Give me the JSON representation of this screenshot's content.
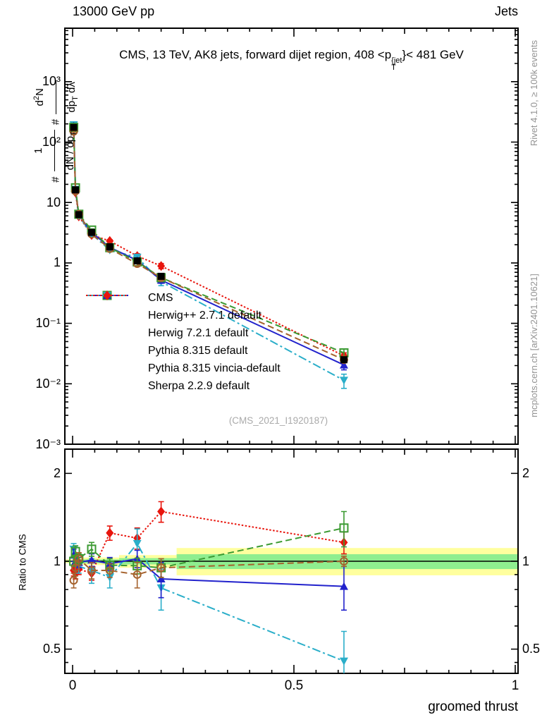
{
  "header": {
    "left": "13000 GeV pp",
    "right": "Jets"
  },
  "title": {
    "prefix": "CMS, 13 TeV, AK8 jets, forward dijet region, 408 <p",
    "sup": "{jet",
    "sub": "T",
    "suffix": "}< 481 GeV"
  },
  "side_texts": {
    "rivet": "Rivet 4.1.0, ≥ 100k events",
    "mcplots": "mcplots.cern.ch [arXiv:2401.10621]"
  },
  "watermark": "(CMS_2021_I1920187)",
  "ylabel_formula": {
    "hash1": "#",
    "f1num": "1",
    "f1den_a": "dN / dp",
    "f1den_sub": "T",
    "hash2": "#",
    "f2num_a": "d",
    "f2num_sup": "2",
    "f2num_b": "N",
    "f2den_a": "dp",
    "f2den_sub": "T",
    "f2den_b": " dλ"
  },
  "ratio_ylabel": "Ratio to CMS",
  "axes": {
    "main_y_labels": [
      "10³",
      "10²",
      "10",
      "1",
      "10⁻¹",
      "10⁻²",
      "10⁻³"
    ],
    "ratio_labels": [
      "2",
      "1",
      "0.5"
    ],
    "x_tick_labels": [
      "0",
      "0.5",
      "1"
    ]
  },
  "chart_data": {
    "type": "line",
    "xlabel": "groomed thrust",
    "x_range": [
      -0.0175,
      1.0064
    ],
    "main_y_log_range": [
      0.001,
      7650
    ],
    "ratio_y_log_range": [
      0.413,
      2.42
    ],
    "x_ticks_labeled": [
      0,
      0.5,
      1
    ],
    "x_tick_step": 0.05,
    "ref_line": 1,
    "x": [
      0.0025,
      0.0065,
      0.014,
      0.043,
      0.084,
      0.146,
      0.2,
      0.613
    ],
    "band_colors": {
      "outer": "#ffff9e",
      "inner": "#8fee8f"
    },
    "bands": [
      {
        "x0": -0.0175,
        "x1": 0.011,
        "outer": [
          0.985,
          1.015
        ],
        "inner": [
          0.993,
          1.007
        ]
      },
      {
        "x0": 0.011,
        "x1": 0.105,
        "outer": [
          0.97,
          1.03
        ],
        "inner": [
          0.985,
          1.015
        ]
      },
      {
        "x0": 0.105,
        "x1": 0.235,
        "outer": [
          0.95,
          1.05
        ],
        "inner": [
          0.975,
          1.025
        ]
      },
      {
        "x0": 0.235,
        "x1": 1.0064,
        "outer": [
          0.895,
          1.11
        ],
        "inner": [
          0.94,
          1.057
        ]
      }
    ],
    "series": [
      {
        "id": "cms",
        "label": "CMS",
        "color": "#000000",
        "marker": "square-filled",
        "line": "none",
        "main_y": [
          175,
          16.2,
          6.3,
          3.2,
          1.85,
          1.08,
          0.6,
          0.025
        ],
        "main_err": [
          5,
          0.5,
          0.2,
          0.1,
          0.06,
          0.05,
          0.04,
          0.002
        ],
        "ratio": null,
        "ratio_err": null
      },
      {
        "id": "herwigpp",
        "label": "Herwig++ 2.7.1 default",
        "color": "#a5622d",
        "marker": "circle-open",
        "line": "dash",
        "main_y": [
          150,
          15.4,
          6.4,
          3.0,
          1.72,
          0.97,
          0.57,
          0.025
        ],
        "main_err": [
          5,
          0.5,
          0.2,
          0.12,
          0.08,
          0.09,
          0.05,
          0.002
        ],
        "ratio": [
          0.86,
          0.95,
          1.02,
          0.93,
          0.93,
          0.9,
          0.95,
          1.0
        ],
        "ratio_err": [
          0.05,
          0.06,
          0.05,
          0.06,
          0.05,
          0.09,
          0.07,
          0.04
        ]
      },
      {
        "id": "herwig7",
        "label": "Herwig 7.2.1 default",
        "color": "#3b9a32",
        "marker": "square-open",
        "line": "dash",
        "main_y": [
          175,
          17.5,
          6.4,
          3.5,
          1.79,
          1.04,
          0.57,
          0.0325
        ],
        "main_err": [
          5,
          0.6,
          0.2,
          0.15,
          0.08,
          0.06,
          0.05,
          0.005
        ],
        "ratio": [
          1.0,
          1.08,
          1.02,
          1.1,
          0.97,
          0.965,
          0.95,
          1.3
        ],
        "ratio_err": [
          0.04,
          0.05,
          0.04,
          0.06,
          0.05,
          0.06,
          0.07,
          0.18
        ]
      },
      {
        "id": "pythia",
        "label": "Pythia 8.315 default",
        "color": "#2222cc",
        "marker": "triangle-up",
        "line": "solid",
        "main_y": [
          184,
          16.2,
          6.2,
          3.2,
          1.81,
          1.1,
          0.52,
          0.0205
        ],
        "main_err": [
          6,
          0.5,
          0.2,
          0.12,
          0.08,
          0.07,
          0.06,
          0.0035
        ],
        "ratio": [
          1.05,
          1.0,
          0.99,
          1.01,
          0.98,
          1.02,
          0.87,
          0.82
        ],
        "ratio_err": [
          0.05,
          0.04,
          0.04,
          0.05,
          0.05,
          0.07,
          0.12,
          0.14
        ]
      },
      {
        "id": "vincia",
        "label": "Pythia 8.315 vincia-default",
        "color": "#2aaec9",
        "marker": "triangle-down",
        "line": "dashdot",
        "main_y": [
          193,
          16.5,
          6.0,
          3.0,
          1.63,
          1.24,
          0.49,
          0.0114
        ],
        "main_err": [
          6,
          0.5,
          0.2,
          0.2,
          0.1,
          0.15,
          0.07,
          0.003
        ],
        "ratio": [
          1.1,
          1.02,
          0.96,
          0.93,
          0.88,
          1.15,
          0.81,
          0.455
        ],
        "ratio_err": [
          0.05,
          0.05,
          0.05,
          0.09,
          0.07,
          0.14,
          0.13,
          0.12
        ]
      },
      {
        "id": "sherpa",
        "label": "Sherpa 2.2.9 default",
        "color": "#e8150d",
        "marker": "diamond",
        "line": "dot",
        "main_y": [
          163,
          14.7,
          5.9,
          2.9,
          2.31,
          1.3,
          0.89,
          0.029
        ],
        "main_err": [
          5,
          0.5,
          0.2,
          0.12,
          0.12,
          0.12,
          0.09,
          0.0035
        ],
        "ratio": [
          0.93,
          0.91,
          0.94,
          0.91,
          1.25,
          1.2,
          1.48,
          1.16
        ],
        "ratio_err": [
          0.04,
          0.04,
          0.04,
          0.05,
          0.07,
          0.1,
          0.12,
          0.1
        ]
      }
    ]
  }
}
